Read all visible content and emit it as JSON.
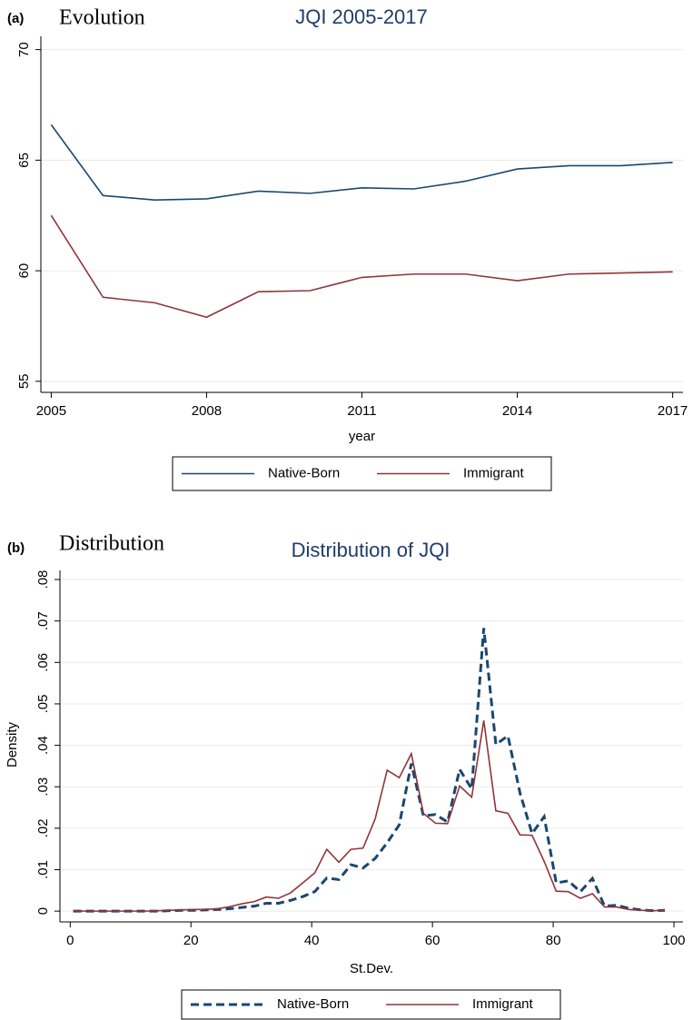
{
  "chart_data": [
    {
      "type": "line",
      "panel_label": "(a)",
      "panel_title": "Evolution",
      "title": "JQI 2005-2017",
      "x_label": "year",
      "x": [
        2005,
        2006,
        2007,
        2008,
        2009,
        2010,
        2011,
        2012,
        2013,
        2014,
        2015,
        2016,
        2017
      ],
      "series": [
        {
          "name": "Native-Born",
          "color": "#1a476f",
          "style": "solid",
          "values": [
            66.6,
            63.4,
            63.2,
            63.25,
            63.6,
            63.5,
            63.75,
            63.7,
            64.05,
            64.6,
            64.75,
            64.75,
            64.9
          ]
        },
        {
          "name": "Immigrant",
          "color": "#90353b",
          "style": "solid",
          "values": [
            62.5,
            58.8,
            58.55,
            57.9,
            59.05,
            59.1,
            59.7,
            59.85,
            59.85,
            59.55,
            59.85,
            59.9,
            59.95
          ]
        }
      ],
      "xlim": [
        2004.8,
        2017.2
      ],
      "xticks": [
        2005,
        2008,
        2011,
        2014,
        2017
      ],
      "ylim": [
        54.5,
        70.6
      ],
      "yticks": [
        55,
        60,
        65,
        70
      ],
      "grid": true,
      "legend": "bottom"
    },
    {
      "type": "line",
      "panel_label": "(b)",
      "panel_title": "Distribution",
      "title": "Distribution of JQI",
      "x_label": "St.Dev.",
      "y_label": "Density",
      "x": [
        0.5,
        2.5,
        4.5,
        6.5,
        8.5,
        10.5,
        12.5,
        14.5,
        16.5,
        18.5,
        20.5,
        22.5,
        24.5,
        26.5,
        28.5,
        30.5,
        32.5,
        34.5,
        36.5,
        38.5,
        40.5,
        42.5,
        44.5,
        46.5,
        48.5,
        50.5,
        52.5,
        54.5,
        56.5,
        58.5,
        60.5,
        62.5,
        64.5,
        66.5,
        68.5,
        70.5,
        72.5,
        74.5,
        76.5,
        78.5,
        80.5,
        82.5,
        84.5,
        86.5,
        88.5,
        90.5,
        92.5,
        94.5,
        96.5,
        98.5
      ],
      "series": [
        {
          "name": "Native-Born",
          "color": "#1a476f",
          "style": "dashed",
          "values": [
            0,
            0,
            0,
            0,
            0,
            0,
            0,
            0,
            0.0001,
            0.0002,
            0.0002,
            0.0003,
            0.0004,
            0.0006,
            0.0009,
            0.0012,
            0.0019,
            0.0019,
            0.0026,
            0.0035,
            0.0047,
            0.008,
            0.0076,
            0.0112,
            0.0104,
            0.0127,
            0.0165,
            0.0208,
            0.0356,
            0.023,
            0.0233,
            0.0215,
            0.0342,
            0.0295,
            0.0683,
            0.0402,
            0.0423,
            0.0285,
            0.0187,
            0.0228,
            0.0068,
            0.0073,
            0.0047,
            0.0079,
            0.0012,
            0.0014,
            0.0007,
            0.0003,
            0.0001,
            0.0002
          ]
        },
        {
          "name": "Immigrant",
          "color": "#90353b",
          "style": "solid",
          "values": [
            0,
            0,
            0,
            0,
            0,
            0,
            0,
            0.0001,
            0.0002,
            0.0003,
            0.0004,
            0.0004,
            0.0006,
            0.0011,
            0.0018,
            0.0023,
            0.0034,
            0.0031,
            0.0044,
            0.0068,
            0.0092,
            0.0149,
            0.0118,
            0.0149,
            0.0152,
            0.0222,
            0.034,
            0.0322,
            0.038,
            0.0236,
            0.0212,
            0.0211,
            0.0302,
            0.0275,
            0.046,
            0.0242,
            0.0236,
            0.0184,
            0.0183,
            0.012,
            0.0048,
            0.0047,
            0.0031,
            0.0042,
            0.001,
            0.001,
            0.0004,
            0.0002,
            0.0001,
            0.0002
          ]
        }
      ],
      "xlim": [
        -1.7,
        101.5
      ],
      "xticks": [
        0,
        20,
        40,
        60,
        80,
        100
      ],
      "ylim": [
        -0.0026,
        0.0822
      ],
      "yticks": [
        0,
        {
          "value": 0.01,
          "label": ".01"
        },
        {
          "value": 0.02,
          "label": ".02"
        },
        {
          "value": 0.03,
          "label": ".03"
        },
        {
          "value": 0.04,
          "label": ".04"
        },
        {
          "value": 0.05,
          "label": ".05"
        },
        {
          "value": 0.06,
          "label": ".06"
        },
        {
          "value": 0.07,
          "label": ".07"
        },
        {
          "value": 0.08,
          "label": ".08"
        }
      ],
      "grid": true,
      "legend": "bottom"
    }
  ]
}
